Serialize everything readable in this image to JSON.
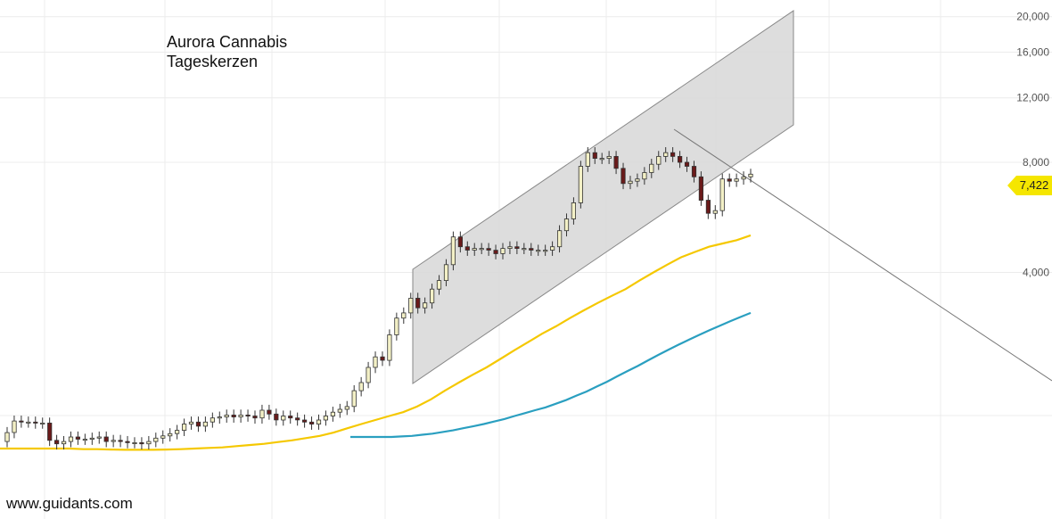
{
  "title": {
    "line1": "Aurora Cannabis",
    "line2": "Tageskerzen"
  },
  "watermark": "www.guidants.com",
  "last_price_label": "7,422",
  "colors": {
    "ma_short": "#f5c800",
    "ma_long": "#2a9fc0",
    "channel_fill": "#d9d9d9",
    "candle_up": "#f3f0c6",
    "candle_down": "#6a1a1a",
    "badge": "#f5e600"
  },
  "chart_data": {
    "type": "line",
    "y_scale": "log",
    "ylim": [
      1200,
      21000
    ],
    "y_ticks": [
      {
        "value": 20000,
        "label": "20,000"
      },
      {
        "value": 16000,
        "label": "16,000"
      },
      {
        "value": 12000,
        "label": "12,000"
      },
      {
        "value": 8000,
        "label": "8,000"
      },
      {
        "value": 4000,
        "label": "4,000"
      }
    ],
    "grid": true,
    "series": [
      {
        "role": "candles",
        "close": [
          1460,
          1570,
          1560,
          1560,
          1550,
          1550,
          1390,
          1360,
          1380,
          1420,
          1400,
          1400,
          1410,
          1420,
          1380,
          1390,
          1380,
          1370,
          1370,
          1360,
          1380,
          1410,
          1430,
          1450,
          1480,
          1540,
          1560,
          1520,
          1560,
          1600,
          1610,
          1630,
          1610,
          1630,
          1620,
          1600,
          1680,
          1640,
          1580,
          1620,
          1600,
          1580,
          1560,
          1540,
          1580,
          1620,
          1660,
          1690,
          1720,
          1900,
          2000,
          2200,
          2350,
          2300,
          2700,
          3000,
          3100,
          3400,
          3200,
          3300,
          3600,
          3800,
          4200,
          5000,
          4700,
          4600,
          4650,
          4650,
          4600,
          4500,
          4650,
          4700,
          4650,
          4650,
          4600,
          4600,
          4600,
          4700,
          5200,
          5600,
          6200,
          7800,
          8500,
          8200,
          8200,
          8300,
          7700,
          7000,
          7100,
          7200,
          7500,
          7900,
          8300,
          8500,
          8300,
          8000,
          7800,
          7300,
          6300,
          5800,
          5900,
          7200,
          7100,
          7200,
          7300,
          7422
        ],
        "open": [
          1380,
          1460,
          1570,
          1560,
          1560,
          1550,
          1550,
          1390,
          1360,
          1380,
          1420,
          1400,
          1400,
          1410,
          1420,
          1380,
          1390,
          1380,
          1370,
          1370,
          1360,
          1380,
          1410,
          1430,
          1450,
          1480,
          1540,
          1560,
          1520,
          1560,
          1600,
          1610,
          1630,
          1610,
          1630,
          1620,
          1600,
          1680,
          1640,
          1580,
          1620,
          1600,
          1580,
          1560,
          1540,
          1580,
          1620,
          1660,
          1690,
          1720,
          1900,
          2000,
          2200,
          2350,
          2300,
          2700,
          3000,
          3100,
          3400,
          3200,
          3300,
          3600,
          3800,
          4200,
          5000,
          4700,
          4600,
          4650,
          4650,
          4600,
          4500,
          4650,
          4700,
          4650,
          4650,
          4600,
          4600,
          4600,
          4700,
          5200,
          5600,
          6200,
          7800,
          8500,
          8200,
          8200,
          8300,
          7700,
          7000,
          7100,
          7200,
          7500,
          7900,
          8300,
          8500,
          8300,
          8000,
          7800,
          7300,
          6300,
          5800,
          5900,
          7200,
          7100,
          7200,
          7300
        ]
      },
      {
        "role": "ma_short",
        "values": [
          1320,
          1320,
          1320,
          1320,
          1320,
          1320,
          1315,
          1315,
          1312,
          1310,
          1310,
          1310,
          1312,
          1315,
          1320,
          1325,
          1330,
          1340,
          1350,
          1360,
          1375,
          1390,
          1410,
          1430,
          1460,
          1500,
          1540,
          1580,
          1620,
          1660,
          1720,
          1800,
          1900,
          2000,
          2100,
          2200,
          2320,
          2450,
          2580,
          2720,
          2850,
          3000,
          3150,
          3300,
          3450,
          3600,
          3800,
          4000,
          4200,
          4400,
          4550,
          4700,
          4800,
          4900,
          5050
        ]
      },
      {
        "role": "ma_long",
        "values": [
          1420,
          1420,
          1420,
          1420,
          1420,
          1425,
          1430,
          1440,
          1450,
          1465,
          1480,
          1500,
          1520,
          1540,
          1565,
          1590,
          1620,
          1650,
          1680,
          1710,
          1750,
          1790,
          1840,
          1890,
          1950,
          2010,
          2080,
          2150,
          2220,
          2300,
          2380,
          2460,
          2540,
          2620,
          2700,
          2780,
          2860,
          2940,
          3020,
          3100
        ]
      }
    ]
  }
}
